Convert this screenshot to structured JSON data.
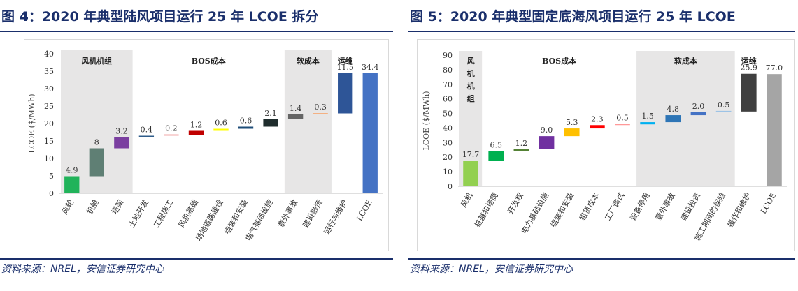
{
  "figures": [
    {
      "id": "left",
      "title": "图 4：2020 年典型陆风项目运行 25 年 LCOE 拆分",
      "source": "资料来源：NREL，安信证券研究中心"
    },
    {
      "id": "right",
      "title": "图 5：2020 年典型固定底海风项目运行 25 年 LCOE",
      "source": "资料来源：NREL，安信证券研究中心"
    }
  ],
  "chart_data": [
    {
      "type": "bar",
      "subtype": "waterfall",
      "title": "",
      "xlabel": "",
      "ylabel": "LCOE ($/MWh)",
      "ylim": [
        0,
        40
      ],
      "yticks": [
        0,
        5,
        10,
        15,
        20,
        25,
        30,
        35,
        40
      ],
      "grid": false,
      "groups": [
        {
          "label": "风机机组",
          "from": 0,
          "to": 2,
          "shaded": true
        },
        {
          "label": "BOS成本",
          "from": 3,
          "to": 8,
          "shaded": false
        },
        {
          "label": "软成本",
          "from": 9,
          "to": 10,
          "shaded": true
        },
        {
          "label": "运维",
          "from": 11,
          "to": 11,
          "shaded": false
        }
      ],
      "categories": [
        "风轮",
        "机舱",
        "塔架",
        "土地开发",
        "工程施工",
        "风机基础",
        "场地道路建设",
        "组装和安装",
        "电气基础设施",
        "意外事故",
        "建设融资",
        "运行与维护",
        "LCOE"
      ],
      "values": [
        4.9,
        8,
        3.2,
        0.4,
        0.2,
        1.2,
        0.6,
        0.6,
        2.1,
        1.4,
        0.3,
        11.5,
        34.4
      ],
      "labels": [
        "4.9",
        "8",
        "3.2",
        "0.4",
        "0.2",
        "1.2",
        "0.6",
        "0.6",
        "2.1",
        "1.4",
        "0.3",
        "11.5",
        "34.4"
      ],
      "total_index": 12,
      "colors": [
        "#21b35a",
        "#5f7f74",
        "#7b3fa0",
        "#2f5c8a",
        "#f0a8a8",
        "#c00000",
        "#ffff00",
        "#1f4e79",
        "#1f2d2d",
        "#656565",
        "#f4b183",
        "#2e5597",
        "#4472c4"
      ]
    },
    {
      "type": "bar",
      "subtype": "waterfall",
      "title": "",
      "xlabel": "",
      "ylabel": "LCOE ($/MWh)",
      "ylim": [
        0,
        90
      ],
      "yticks": [
        0,
        10,
        20,
        30,
        40,
        50,
        60,
        70,
        80,
        90
      ],
      "grid": false,
      "groups": [
        {
          "label": "风机机组",
          "from": 0,
          "to": 0,
          "shaded": true,
          "vertical": true
        },
        {
          "label": "BOS成本",
          "from": 1,
          "to": 6,
          "shaded": false
        },
        {
          "label": "软成本",
          "from": 7,
          "to": 10,
          "shaded": true
        },
        {
          "label": "运维",
          "from": 11,
          "to": 11,
          "shaded": false
        }
      ],
      "categories": [
        "风机",
        "桩基和塔筒",
        "开发权",
        "电力基础设施",
        "组装和安装",
        "租赁成本",
        "工厂调试",
        "设备停用",
        "意外事故",
        "建设投资",
        "施工期间的保险",
        "操作和维护",
        "LCOE"
      ],
      "values": [
        17.7,
        6.5,
        1.2,
        9.0,
        5.3,
        2.3,
        0.5,
        1.5,
        4.8,
        2.0,
        0.5,
        25.9,
        77.0
      ],
      "labels": [
        "17.7",
        "6.5",
        "1.2",
        "9.0",
        "5.3",
        "2.3",
        "0.5",
        "1.5",
        "4.8",
        "2.0",
        "0.5",
        "25.9",
        "77.0"
      ],
      "total_index": 12,
      "colors": [
        "#92d050",
        "#00b050",
        "#548235",
        "#7030a0",
        "#ffc000",
        "#ff0000",
        "#ff9999",
        "#00b0f0",
        "#2e75b6",
        "#4472c4",
        "#9dc3e6",
        "#404040",
        "#a5a5a5"
      ]
    }
  ]
}
